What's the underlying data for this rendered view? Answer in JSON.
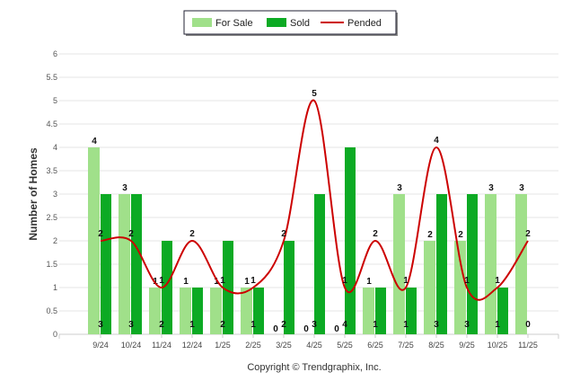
{
  "chart_data": {
    "type": "bar",
    "title": "",
    "xlabel": "",
    "ylabel": "Number of Homes",
    "ylim": [
      0,
      6
    ],
    "yticks": [
      "0",
      "0.5",
      "1",
      "1.5",
      "2",
      "2.5",
      "3",
      "3.5",
      "4",
      "4.5",
      "5",
      "5.5",
      "6"
    ],
    "grid": true,
    "legend_position": "top-center",
    "categories": [
      "9/24",
      "10/24",
      "11/24",
      "12/24",
      "1/25",
      "2/25",
      "3/25",
      "4/25",
      "5/25",
      "6/25",
      "7/25",
      "8/25",
      "9/25",
      "10/25",
      "11/25"
    ],
    "series": [
      {
        "name": "For Sale",
        "type": "bar",
        "color": "#a0e08a",
        "values": [
          4,
          3,
          1,
          1,
          1,
          1,
          0,
          0,
          0,
          1,
          3,
          2,
          2,
          3,
          3
        ]
      },
      {
        "name": "Sold",
        "type": "bar",
        "color": "#0caa24",
        "values": [
          3,
          3,
          2,
          1,
          2,
          1,
          2,
          3,
          4,
          1,
          1,
          3,
          3,
          1,
          0
        ]
      },
      {
        "name": "Pended",
        "type": "line",
        "color": "#cc0000",
        "values": [
          2,
          2,
          1,
          2,
          1,
          1,
          2,
          5,
          1,
          2,
          1,
          4,
          1,
          1,
          2
        ]
      }
    ]
  },
  "footer": {
    "copyright": "Copyright © Trendgraphix, Inc."
  }
}
